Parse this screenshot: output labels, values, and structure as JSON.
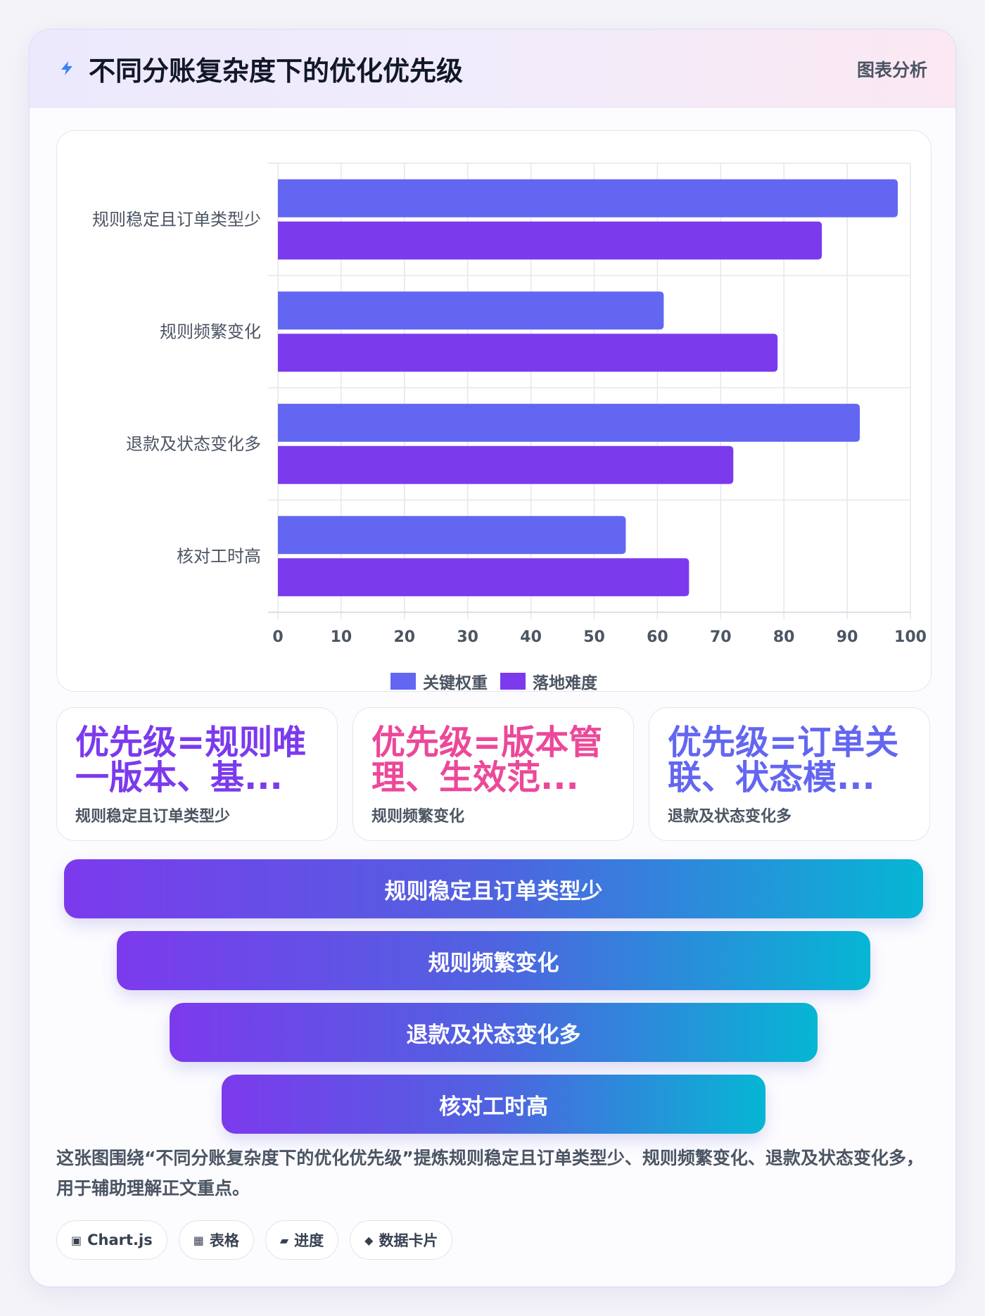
{
  "header": {
    "title": "不同分账复杂度下的优化优先级",
    "tag": "图表分析"
  },
  "colors": {
    "series_1": "#6366f1",
    "series_2": "#7c3aed",
    "stat_1": "#7c3aed",
    "stat_2": "#ec4899",
    "stat_3": "#6366f1",
    "funnel_start": "#7c3aed",
    "funnel_end": "#06b6d4"
  },
  "chart_data": {
    "type": "bar",
    "orientation": "horizontal",
    "categories": [
      "规则稳定且订单类型少",
      "规则频繁变化",
      "退款及状态变化多",
      "核对工时高"
    ],
    "series": [
      {
        "name": "关键权重",
        "values": [
          98,
          61,
          92,
          55
        ]
      },
      {
        "name": "落地难度",
        "values": [
          86,
          79,
          72,
          65
        ]
      }
    ],
    "x_ticks": [
      "0",
      "10",
      "20",
      "30",
      "40",
      "50",
      "60",
      "70",
      "80",
      "90",
      "100"
    ],
    "xlim": [
      0,
      100
    ],
    "grid": true,
    "legend_position": "bottom"
  },
  "stats": [
    {
      "value": "优先级=规则唯一版本、基...",
      "label": "规则稳定且订单类型少"
    },
    {
      "value": "优先级=版本管理、生效范...",
      "label": "规则频繁变化"
    },
    {
      "value": "优先级=订单关联、状态模...",
      "label": "退款及状态变化多"
    }
  ],
  "funnel": [
    "规则稳定且订单类型少",
    "规则频繁变化",
    "退款及状态变化多",
    "核对工时高"
  ],
  "summary": "这张图围绕“不同分账复杂度下的优化优先级”提炼规则稳定且订单类型少、规则频繁变化、退款及状态变化多，用于辅助理解正文重点。",
  "chips": [
    {
      "icon": "▣",
      "icon_name": "chart-icon",
      "label": "Chart.js"
    },
    {
      "icon": "▦",
      "icon_name": "table-icon",
      "label": "表格"
    },
    {
      "icon": "▰",
      "icon_name": "progress-icon",
      "label": "进度"
    },
    {
      "icon": "◆",
      "icon_name": "card-icon",
      "label": "数据卡片"
    }
  ]
}
